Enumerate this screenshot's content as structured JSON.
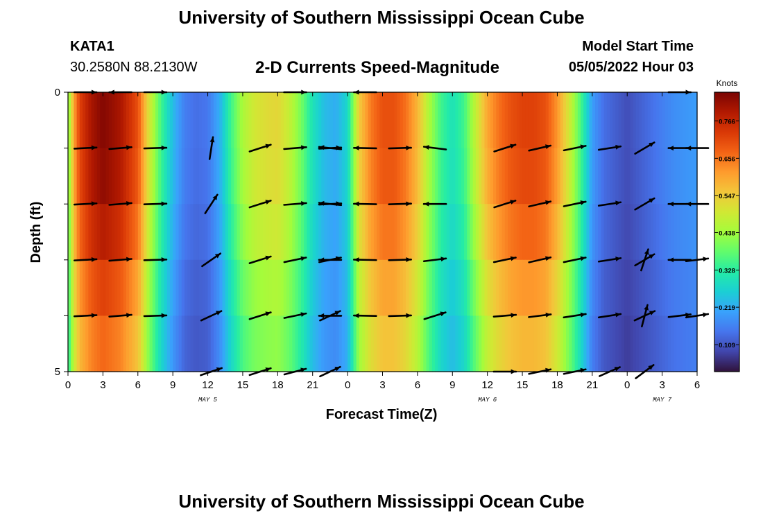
{
  "header": {
    "title": "University of Southern Mississippi Ocean Cube",
    "station": "KATA1",
    "coords": "30.2580N  88.2130W",
    "chart_title": "2-D Currents Speed-Magnitude",
    "model_start_label": "Model Start Time",
    "model_start_value": "05/05/2022 Hour 03"
  },
  "footer": {
    "title": "University of Southern Mississippi Ocean Cube"
  },
  "colorbar": {
    "unit": "Knots",
    "ticks": [
      0.109,
      0.219,
      0.328,
      0.438,
      0.547,
      0.656,
      0.766
    ],
    "tick_labels": [
      "0.109",
      "0.219",
      "0.328",
      "0.438",
      "0.547",
      "0.656",
      "0.766"
    ],
    "range": [
      0.03,
      0.85
    ],
    "colors": [
      "#30123b",
      "#4145ab",
      "#4675ed",
      "#39a2fc",
      "#1bcfd4",
      "#24eca6",
      "#61fc6c",
      "#a4fc3b",
      "#d1e834",
      "#f3c63a",
      "#fe9b2d",
      "#f36315",
      "#d93806",
      "#b11901",
      "#7a0402"
    ]
  },
  "chart_data": {
    "type": "heatmap",
    "title": "2-D Currents Speed-Magnitude",
    "xlabel": "Forecast Time(Z)",
    "ylabel": "Depth (ft)",
    "x_unit": "hours since May 5 00Z",
    "xlim": [
      0,
      54
    ],
    "ylim": [
      0,
      5
    ],
    "x_ticks": [
      0,
      3,
      6,
      9,
      12,
      15,
      18,
      21,
      24,
      27,
      30,
      33,
      36,
      39,
      42,
      45,
      48,
      51,
      54
    ],
    "x_tick_labels": [
      "0",
      "3",
      "6",
      "9",
      "12",
      "15",
      "18",
      "21",
      "0",
      "3",
      "6",
      "9",
      "12",
      "15",
      "18",
      "21",
      "0",
      "3",
      "6"
    ],
    "y_tick_labels": [
      {
        "depth": 0,
        "label": "0"
      },
      {
        "depth": 5,
        "label": "5"
      }
    ],
    "day_labels": [
      {
        "hour": 12,
        "label": "MAY 5"
      },
      {
        "hour": 36,
        "label": "MAY 6"
      },
      {
        "hour": 51,
        "label": "MAY 7"
      }
    ],
    "depth_levels": [
      0,
      1,
      2,
      3,
      4,
      5
    ],
    "speed_profile": {
      "hours": [
        0,
        0.5,
        1,
        2,
        3,
        4.5,
        6,
        7,
        8,
        9,
        10,
        11,
        12,
        13,
        14,
        15,
        16,
        17,
        18,
        19,
        20,
        21,
        22,
        23,
        24,
        25,
        26,
        27,
        28,
        29,
        30,
        31,
        32,
        33,
        34,
        35,
        36,
        37,
        38,
        39,
        40,
        41,
        42,
        43,
        44,
        45,
        46,
        47,
        48,
        49,
        50,
        51,
        52,
        53,
        54
      ],
      "values": [
        0.4,
        0.6,
        0.72,
        0.8,
        0.84,
        0.8,
        0.7,
        0.5,
        0.35,
        0.24,
        0.16,
        0.14,
        0.15,
        0.22,
        0.35,
        0.45,
        0.5,
        0.52,
        0.53,
        0.48,
        0.4,
        0.3,
        0.24,
        0.22,
        0.28,
        0.55,
        0.65,
        0.7,
        0.7,
        0.66,
        0.58,
        0.45,
        0.35,
        0.3,
        0.35,
        0.48,
        0.6,
        0.66,
        0.7,
        0.72,
        0.72,
        0.7,
        0.62,
        0.5,
        0.36,
        0.2,
        0.14,
        0.12,
        0.1,
        0.12,
        0.14,
        0.16,
        0.18,
        0.19,
        0.2
      ]
    },
    "depth_factors": [
      1.0,
      1.0,
      0.97,
      0.9,
      0.82,
      0.78
    ],
    "vectors": [
      {
        "depth": 0,
        "hour": 1.5,
        "u": 1,
        "v": 0
      },
      {
        "depth": 0,
        "hour": 4.5,
        "u": -1,
        "v": 0
      },
      {
        "depth": 0,
        "hour": 7.5,
        "u": 1,
        "v": 0
      },
      {
        "depth": 0,
        "hour": 19.5,
        "u": 1,
        "v": 0
      },
      {
        "depth": 0,
        "hour": 25.5,
        "u": -1,
        "v": 0
      },
      {
        "depth": 0,
        "hour": 52.5,
        "u": 1,
        "v": 0
      },
      {
        "depth": 1,
        "hour": 1.5,
        "u": 0.98,
        "v": 0.05
      },
      {
        "depth": 1,
        "hour": 4.5,
        "u": 0.98,
        "v": 0.08
      },
      {
        "depth": 1,
        "hour": 7.5,
        "u": 0.98,
        "v": 0.03
      },
      {
        "depth": 1,
        "hour": 12.3,
        "u": 0.15,
        "v": 0.98
      },
      {
        "depth": 1,
        "hour": 16.5,
        "u": 0.94,
        "v": 0.3
      },
      {
        "depth": 1,
        "hour": 19.5,
        "u": 0.98,
        "v": 0.08
      },
      {
        "depth": 1,
        "hour": 22.5,
        "u": 0.98,
        "v": 0.05
      },
      {
        "depth": 1,
        "hour": 22.5,
        "u": -0.97,
        "v": 0.1
      },
      {
        "depth": 1,
        "hour": 25.5,
        "u": -0.99,
        "v": 0.02
      },
      {
        "depth": 1,
        "hour": 28.5,
        "u": 0.98,
        "v": 0.03
      },
      {
        "depth": 1,
        "hour": 31.5,
        "u": -0.97,
        "v": 0.12
      },
      {
        "depth": 1,
        "hour": 37.5,
        "u": 0.94,
        "v": 0.3
      },
      {
        "depth": 1,
        "hour": 40.5,
        "u": 0.96,
        "v": 0.22
      },
      {
        "depth": 1,
        "hour": 43.5,
        "u": 0.96,
        "v": 0.2
      },
      {
        "depth": 1,
        "hour": 46.5,
        "u": 0.97,
        "v": 0.15
      },
      {
        "depth": 1,
        "hour": 49.5,
        "u": 0.85,
        "v": 0.5
      },
      {
        "depth": 1,
        "hour": 52.5,
        "u": -1,
        "v": 0
      },
      {
        "depth": 1,
        "hour": 54,
        "u": -1,
        "v": 0
      },
      {
        "depth": 2,
        "hour": 1.5,
        "u": 0.98,
        "v": 0.05
      },
      {
        "depth": 2,
        "hour": 4.5,
        "u": 0.98,
        "v": 0.08
      },
      {
        "depth": 2,
        "hour": 7.5,
        "u": 0.98,
        "v": 0.03
      },
      {
        "depth": 2,
        "hour": 12.3,
        "u": 0.55,
        "v": 0.84
      },
      {
        "depth": 2,
        "hour": 16.5,
        "u": 0.94,
        "v": 0.3
      },
      {
        "depth": 2,
        "hour": 19.5,
        "u": 0.98,
        "v": 0.08
      },
      {
        "depth": 2,
        "hour": 22.5,
        "u": 0.98,
        "v": 0.05
      },
      {
        "depth": 2,
        "hour": 22.5,
        "u": -0.97,
        "v": 0.1
      },
      {
        "depth": 2,
        "hour": 25.5,
        "u": -0.99,
        "v": 0.02
      },
      {
        "depth": 2,
        "hour": 28.5,
        "u": 0.98,
        "v": 0.03
      },
      {
        "depth": 2,
        "hour": 31.5,
        "u": -1,
        "v": 0
      },
      {
        "depth": 2,
        "hour": 37.5,
        "u": 0.94,
        "v": 0.3
      },
      {
        "depth": 2,
        "hour": 40.5,
        "u": 0.96,
        "v": 0.22
      },
      {
        "depth": 2,
        "hour": 43.5,
        "u": 0.96,
        "v": 0.2
      },
      {
        "depth": 2,
        "hour": 46.5,
        "u": 0.97,
        "v": 0.15
      },
      {
        "depth": 2,
        "hour": 49.5,
        "u": 0.85,
        "v": 0.5
      },
      {
        "depth": 2,
        "hour": 52.5,
        "u": -1,
        "v": 0
      },
      {
        "depth": 2,
        "hour": 54,
        "u": -1,
        "v": 0
      },
      {
        "depth": 3,
        "hour": 1.5,
        "u": 0.98,
        "v": 0.05
      },
      {
        "depth": 3,
        "hour": 4.5,
        "u": 0.98,
        "v": 0.08
      },
      {
        "depth": 3,
        "hour": 7.5,
        "u": 0.98,
        "v": 0.03
      },
      {
        "depth": 3,
        "hour": 12.3,
        "u": 0.82,
        "v": 0.57
      },
      {
        "depth": 3,
        "hour": 16.5,
        "u": 0.94,
        "v": 0.3
      },
      {
        "depth": 3,
        "hour": 19.5,
        "u": 0.96,
        "v": 0.2
      },
      {
        "depth": 3,
        "hour": 22.5,
        "u": 0.96,
        "v": 0.2
      },
      {
        "depth": 3,
        "hour": 22.5,
        "u": -1,
        "v": 0
      },
      {
        "depth": 3,
        "hour": 25.5,
        "u": -0.99,
        "v": 0.02
      },
      {
        "depth": 3,
        "hour": 28.5,
        "u": 0.98,
        "v": 0.03
      },
      {
        "depth": 3,
        "hour": 31.5,
        "u": 0.97,
        "v": 0.12
      },
      {
        "depth": 3,
        "hour": 37.5,
        "u": 0.96,
        "v": 0.2
      },
      {
        "depth": 3,
        "hour": 40.5,
        "u": 0.96,
        "v": 0.22
      },
      {
        "depth": 3,
        "hour": 43.5,
        "u": 0.96,
        "v": 0.2
      },
      {
        "depth": 3,
        "hour": 46.5,
        "u": 0.97,
        "v": 0.15
      },
      {
        "depth": 3,
        "hour": 49.5,
        "u": 0.85,
        "v": 0.5
      },
      {
        "depth": 3,
        "hour": 49.5,
        "u": 0.3,
        "v": 0.9
      },
      {
        "depth": 3,
        "hour": 52.5,
        "u": -1,
        "v": 0
      },
      {
        "depth": 3,
        "hour": 54,
        "u": 0.98,
        "v": 0.12
      },
      {
        "depth": 4,
        "hour": 1.5,
        "u": 0.98,
        "v": 0.05
      },
      {
        "depth": 4,
        "hour": 4.5,
        "u": 0.98,
        "v": 0.08
      },
      {
        "depth": 4,
        "hour": 7.5,
        "u": 0.98,
        "v": 0.03
      },
      {
        "depth": 4,
        "hour": 12.3,
        "u": 0.9,
        "v": 0.42
      },
      {
        "depth": 4,
        "hour": 16.5,
        "u": 0.94,
        "v": 0.3
      },
      {
        "depth": 4,
        "hour": 19.5,
        "u": 0.96,
        "v": 0.2
      },
      {
        "depth": 4,
        "hour": 22.5,
        "u": 0.9,
        "v": 0.42
      },
      {
        "depth": 4,
        "hour": 22.5,
        "u": -1,
        "v": 0
      },
      {
        "depth": 4,
        "hour": 25.5,
        "u": -0.99,
        "v": 0.02
      },
      {
        "depth": 4,
        "hour": 28.5,
        "u": 0.98,
        "v": 0.03
      },
      {
        "depth": 4,
        "hour": 31.5,
        "u": 0.95,
        "v": 0.3
      },
      {
        "depth": 4,
        "hour": 37.5,
        "u": 0.98,
        "v": 0.08
      },
      {
        "depth": 4,
        "hour": 40.5,
        "u": 0.97,
        "v": 0.12
      },
      {
        "depth": 4,
        "hour": 43.5,
        "u": 0.97,
        "v": 0.15
      },
      {
        "depth": 4,
        "hour": 46.5,
        "u": 0.97,
        "v": 0.15
      },
      {
        "depth": 4,
        "hour": 49.5,
        "u": 0.9,
        "v": 0.42
      },
      {
        "depth": 4,
        "hour": 49.5,
        "u": 0.25,
        "v": 0.95
      },
      {
        "depth": 4,
        "hour": 52.5,
        "u": 0.98,
        "v": 0.12
      },
      {
        "depth": 4,
        "hour": 54,
        "u": 0.98,
        "v": 0.15
      },
      {
        "depth": 5,
        "hour": 12.3,
        "u": 0.94,
        "v": 0.32
      },
      {
        "depth": 5,
        "hour": 16.5,
        "u": 0.94,
        "v": 0.3
      },
      {
        "depth": 5,
        "hour": 19.5,
        "u": 0.96,
        "v": 0.25
      },
      {
        "depth": 5,
        "hour": 22.5,
        "u": 0.9,
        "v": 0.42
      },
      {
        "depth": 5,
        "hour": 37.5,
        "u": 1,
        "v": 0
      },
      {
        "depth": 5,
        "hour": 40.5,
        "u": 0.96,
        "v": 0.2
      },
      {
        "depth": 5,
        "hour": 43.5,
        "u": 0.96,
        "v": 0.2
      },
      {
        "depth": 5,
        "hour": 46.5,
        "u": 0.9,
        "v": 0.4
      },
      {
        "depth": 5,
        "hour": 49.5,
        "u": 0.8,
        "v": 0.6
      }
    ]
  }
}
